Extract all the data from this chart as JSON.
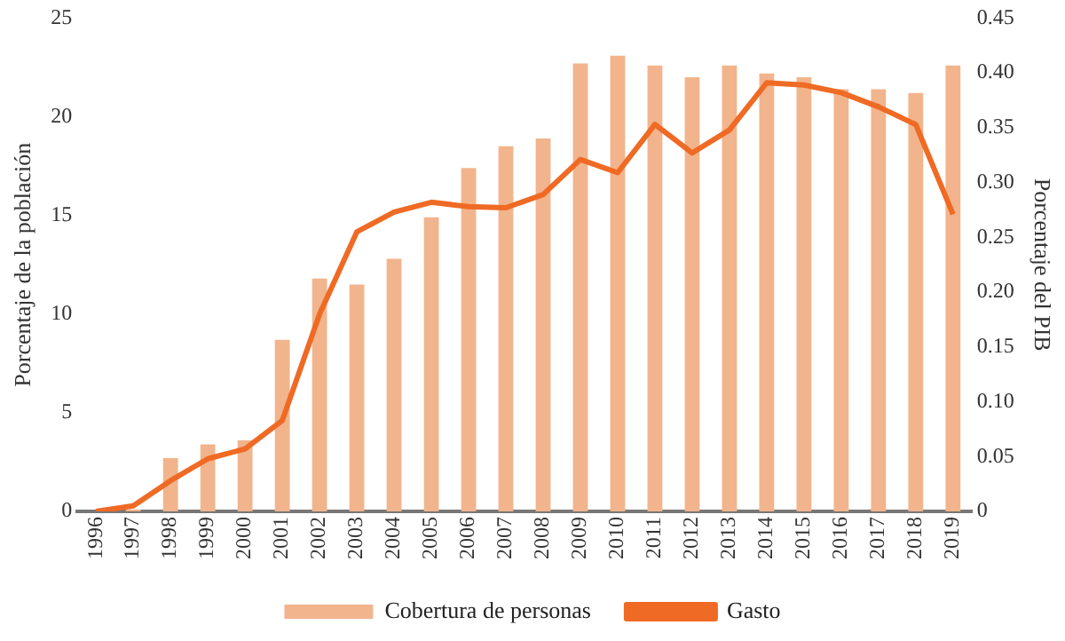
{
  "chart_data": {
    "type": "bar",
    "ylabel": "Porcentaje de la población",
    "y2label": "Porcentaje del PIB",
    "categories": [
      "1996",
      "1997",
      "1998",
      "1999",
      "2000",
      "2001",
      "2002",
      "2003",
      "2004",
      "2005",
      "2006",
      "2007",
      "2008",
      "2009",
      "2010",
      "2011",
      "2012",
      "2013",
      "2014",
      "2015",
      "2016",
      "2017",
      "2018",
      "2019"
    ],
    "series": [
      {
        "name": "Cobertura de personas",
        "color": "#f2b48c",
        "values": [
          0,
          0.1,
          2.7,
          3.4,
          3.6,
          8.7,
          11.8,
          11.5,
          12.8,
          14.9,
          17.4,
          18.5,
          18.9,
          22.7,
          23.1,
          22.6,
          22.0,
          22.6,
          22.2,
          22.0,
          21.4,
          21.4,
          21.2,
          22.6
        ]
      },
      {
        "name": "Gasto",
        "type": "line",
        "axis": "y2",
        "color": "#ef6a24",
        "values": [
          0,
          0.005,
          0.028,
          0.048,
          0.057,
          0.083,
          0.18,
          0.255,
          0.273,
          0.282,
          0.278,
          0.277,
          0.289,
          0.321,
          0.309,
          0.353,
          0.327,
          0.348,
          0.391,
          0.389,
          0.382,
          0.369,
          0.353,
          0.271
        ]
      }
    ],
    "ylim": [
      0,
      25
    ],
    "yticks": [
      0,
      5,
      10,
      15,
      20,
      25
    ],
    "y2lim": [
      0,
      0.45
    ],
    "y2ticks": [
      {
        "value": 0,
        "label": "0"
      },
      {
        "value": 0.05,
        "label": "0.05"
      },
      {
        "value": 0.1,
        "label": "0.10"
      },
      {
        "value": 0.15,
        "label": "0.15"
      },
      {
        "value": 0.2,
        "label": "0.20"
      },
      {
        "value": 0.25,
        "label": "0.25"
      },
      {
        "value": 0.3,
        "label": "0.30"
      },
      {
        "value": 0.35,
        "label": "0.35"
      },
      {
        "value": 0.4,
        "label": "0.40"
      },
      {
        "value": 0.45,
        "label": "0.45"
      }
    ],
    "grid": false,
    "legend": "bottom",
    "marker": "none"
  }
}
